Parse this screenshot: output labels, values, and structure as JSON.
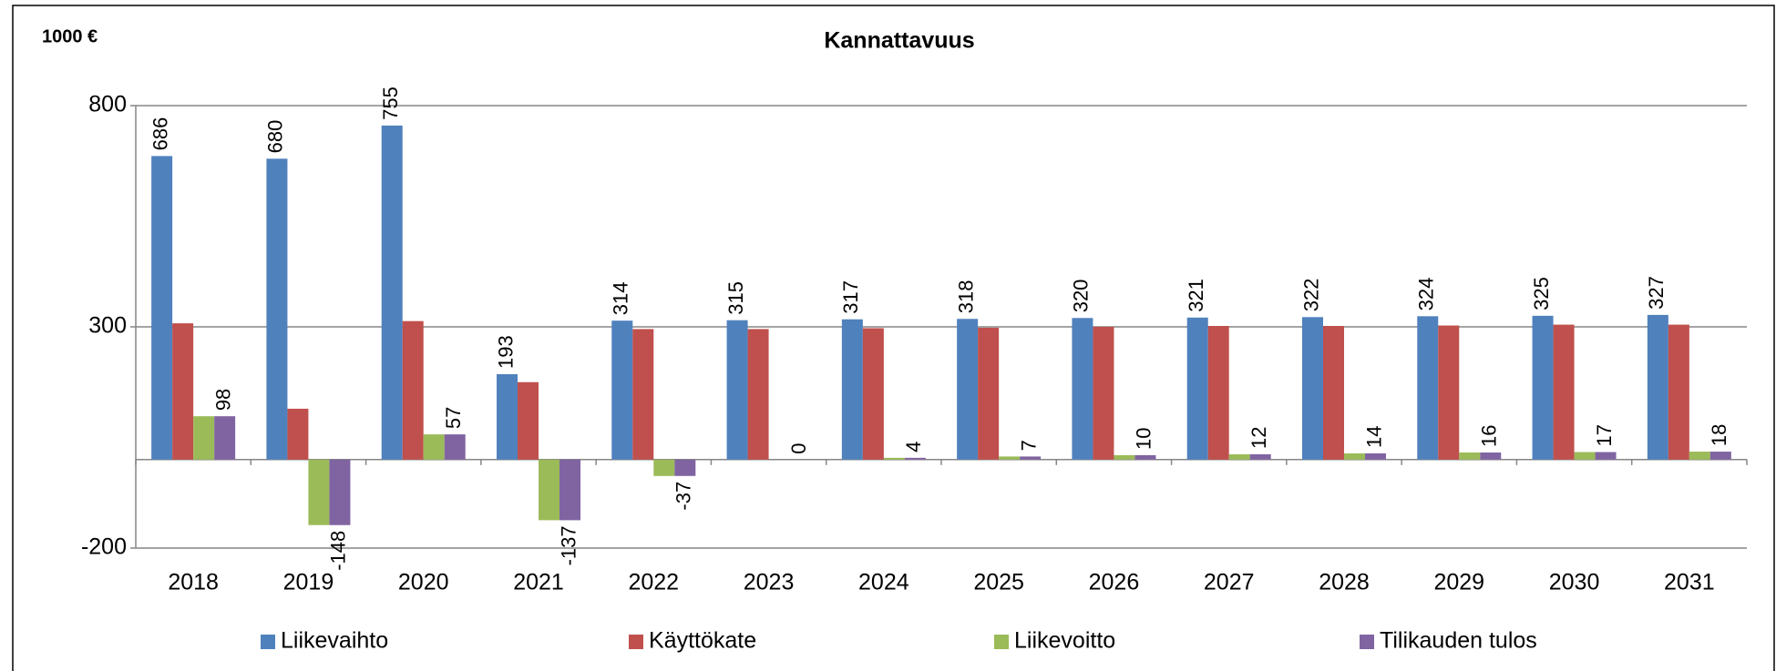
{
  "chart_data": {
    "type": "bar",
    "title": "Kannattavuus",
    "y_label": "1000 €",
    "categories": [
      "2018",
      "2019",
      "2020",
      "2021",
      "2022",
      "2023",
      "2024",
      "2025",
      "2026",
      "2027",
      "2028",
      "2029",
      "2030",
      "2031"
    ],
    "series": [
      {
        "name": "Liikevaihto",
        "color": "#4f81bd",
        "data_labels": true,
        "values": [
          686,
          680,
          755,
          193,
          314,
          315,
          317,
          318,
          320,
          321,
          322,
          324,
          325,
          327
        ]
      },
      {
        "name": "Käyttökate",
        "color": "#c0504d",
        "data_labels": false,
        "values": [
          308,
          115,
          313,
          175,
          295,
          295,
          297,
          298,
          300,
          302,
          302,
          303,
          305,
          305
        ]
      },
      {
        "name": "Liikevoitto",
        "color": "#9bbb59",
        "data_labels": false,
        "values": [
          98,
          -148,
          57,
          -137,
          -37,
          0,
          4,
          7,
          10,
          12,
          14,
          16,
          17,
          18
        ]
      },
      {
        "name": "Tilikauden tulos",
        "color": "#8064a2",
        "data_labels": true,
        "values": [
          98,
          -148,
          57,
          -137,
          -37,
          0,
          4,
          7,
          10,
          12,
          14,
          16,
          17,
          18
        ]
      }
    ],
    "ylim": [
      -200,
      800
    ],
    "yticks": [
      -200,
      300,
      800
    ],
    "grid": true,
    "legend": "bottom"
  }
}
